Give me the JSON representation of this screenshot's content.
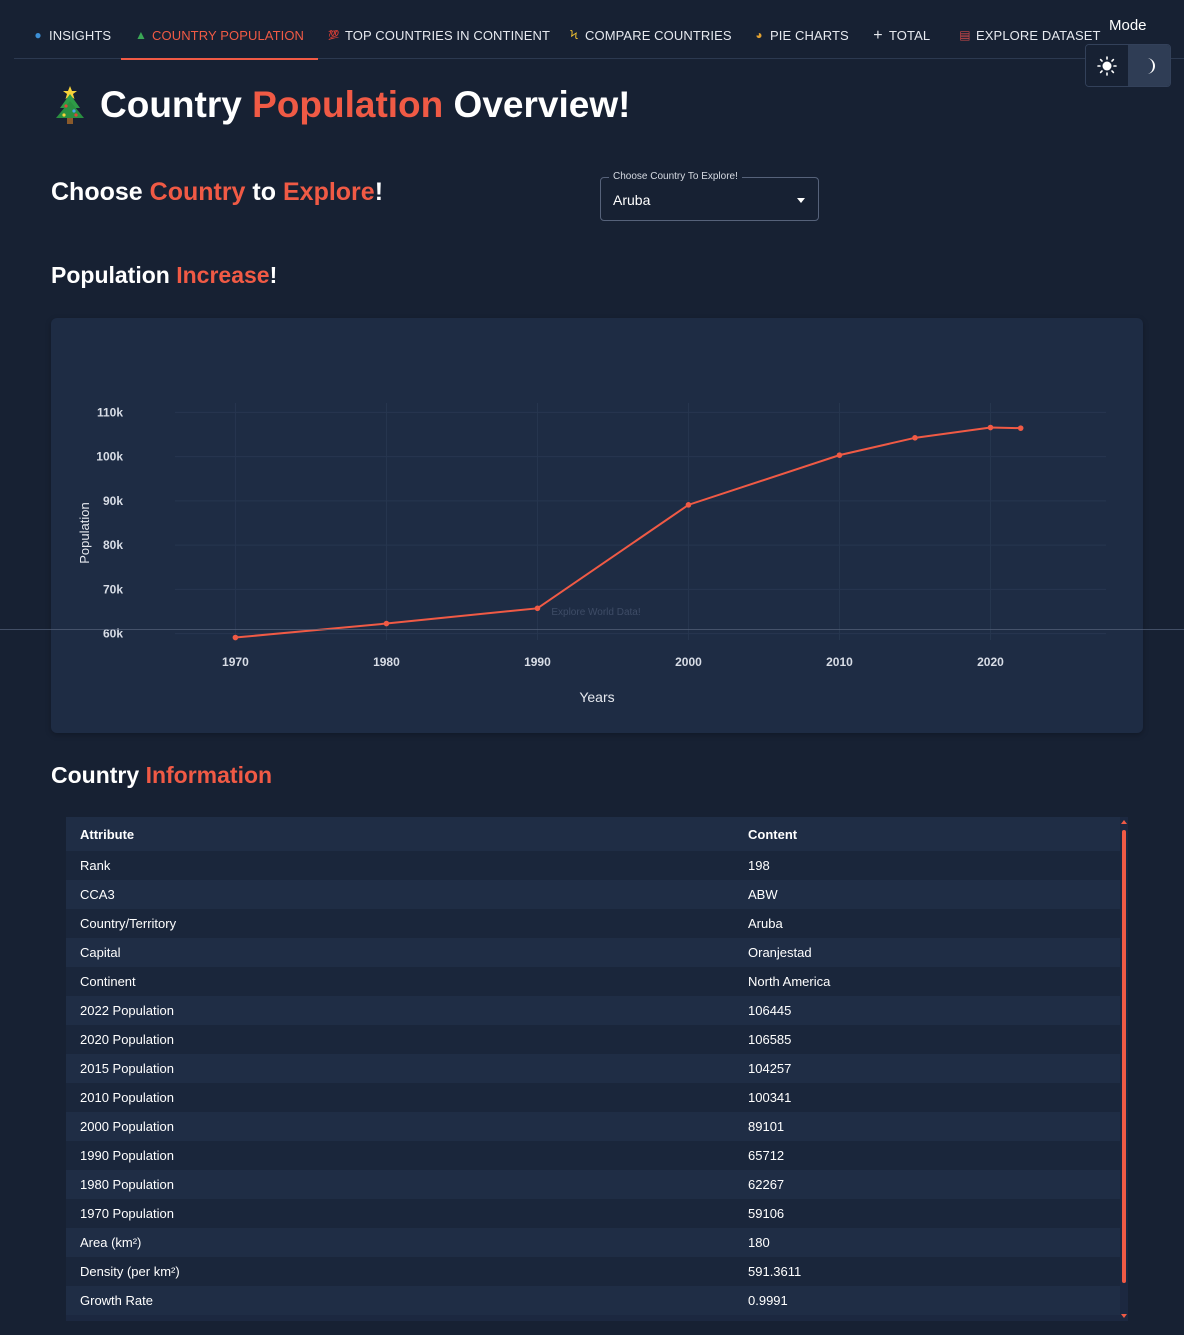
{
  "nav": {
    "tabs": [
      {
        "label": "INSIGHTS",
        "icon": "globe-icon",
        "glyph": "●",
        "color": "#3c8fd6",
        "active": false
      },
      {
        "label": "COUNTRY POPULATION",
        "icon": "tree-icon",
        "glyph": "▲",
        "color": "#3aa655",
        "active": true
      },
      {
        "label": "TOP COUNTRIES IN CONTINENT",
        "icon": "hundred-icon",
        "glyph": "💯",
        "color": "#e0463a",
        "active": false
      },
      {
        "label": "COMPARE COUNTRIES",
        "icon": "lightning-icon",
        "glyph": "ϟ",
        "color": "#f2c230",
        "active": false
      },
      {
        "label": "PIE CHARTS",
        "icon": "pie-icon",
        "glyph": "◕",
        "color": "#e0a030",
        "active": false
      },
      {
        "label": "TOTAL",
        "icon": "plus-icon",
        "glyph": "+",
        "color": "#e6e9ef",
        "active": false
      },
      {
        "label": "EXPLORE DATASET",
        "icon": "calendar-icon",
        "glyph": "▤",
        "color": "#d04a4a",
        "active": false
      }
    ],
    "mode_label": "Mode"
  },
  "title": {
    "part1": "Country",
    "part2": "Population",
    "part3": "Overview!"
  },
  "choose": {
    "part1": "Choose",
    "part2": "Country",
    "part3": "to",
    "part4": "Explore",
    "part5": "!"
  },
  "select": {
    "legend": "Choose Country To Explore!",
    "value": "Aruba"
  },
  "increase": {
    "part1": "Population",
    "part2": "Increase",
    "part3": "!"
  },
  "info": {
    "part1": "Country",
    "part2": "Information"
  },
  "colors": {
    "accent": "#f05a45",
    "background": "#172133",
    "card": "#1e2c44"
  },
  "chart_data": {
    "type": "line",
    "x": [
      1970,
      1980,
      1990,
      2000,
      2010,
      2015,
      2020,
      2022
    ],
    "series": [
      {
        "values": [
          59106,
          62267,
          65712,
          89101,
          100341,
          104257,
          106585,
          106445
        ]
      }
    ],
    "xlabel": "Years",
    "ylabel": "Population",
    "xticks": [
      1970,
      1980,
      1990,
      2000,
      2010,
      2020
    ],
    "xtick_labels": [
      "1970",
      "1980",
      "1990",
      "2000",
      "2010",
      "2020"
    ],
    "yticks": [
      60000,
      70000,
      80000,
      90000,
      100000,
      110000
    ],
    "ytick_labels": [
      "60k",
      "70k",
      "80k",
      "90k",
      "100k",
      "110k"
    ],
    "watermark": "Explore World Data!",
    "grid": true,
    "line_color": "#f05a45"
  },
  "table": {
    "headers": [
      "Attribute",
      "Content"
    ],
    "rows": [
      [
        "Rank",
        "198"
      ],
      [
        "CCA3",
        "ABW"
      ],
      [
        "Country/Territory",
        "Aruba"
      ],
      [
        "Capital",
        "Oranjestad"
      ],
      [
        "Continent",
        "North America"
      ],
      [
        "2022 Population",
        "106445"
      ],
      [
        "2020 Population",
        "106585"
      ],
      [
        "2015 Population",
        "104257"
      ],
      [
        "2010 Population",
        "100341"
      ],
      [
        "2000 Population",
        "89101"
      ],
      [
        "1990 Population",
        "65712"
      ],
      [
        "1980 Population",
        "62267"
      ],
      [
        "1970 Population",
        "59106"
      ],
      [
        "Area (km²)",
        "180"
      ],
      [
        "Density (per km²)",
        "591.3611"
      ],
      [
        "Growth Rate",
        "0.9991"
      ]
    ]
  }
}
